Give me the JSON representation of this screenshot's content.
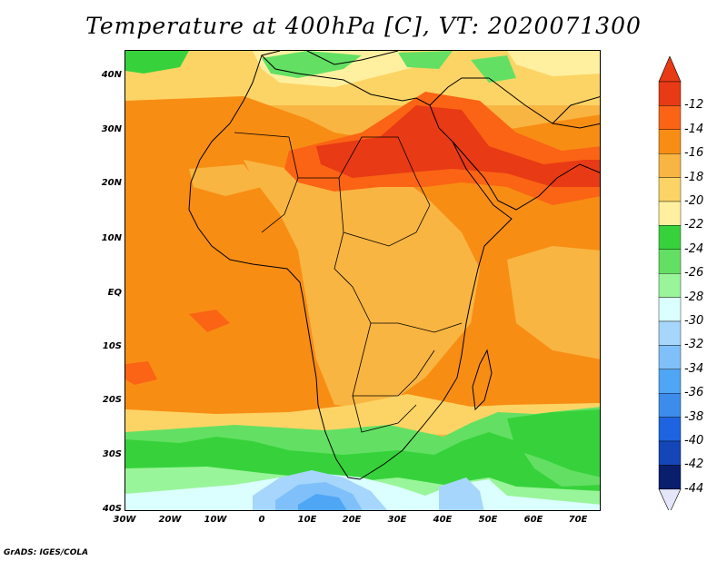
{
  "title": "Temperature at 400hPa [C], VT: 2020071300",
  "credit": "GrADS: IGES/COLA",
  "lat_labels": [
    "40N",
    "30N",
    "20N",
    "10N",
    "EQ",
    "10S",
    "20S",
    "30S",
    "40S"
  ],
  "lon_labels": [
    "30W",
    "20W",
    "10W",
    "0",
    "10E",
    "20E",
    "30E",
    "40E",
    "50E",
    "60E",
    "70E"
  ],
  "colorbar": {
    "labels": [
      "-12",
      "-14",
      "-16",
      "-18",
      "-20",
      "-22",
      "-24",
      "-26",
      "-28",
      "-30",
      "-32",
      "-34",
      "-36",
      "-38",
      "-40",
      "-42",
      "-44"
    ],
    "colors": [
      "#e83a14",
      "#fa6414",
      "#f88d14",
      "#f9b541",
      "#fcd465",
      "#fff0a0",
      "#37d23b",
      "#63e063",
      "#99f599",
      "#dbfefe",
      "#a6d6fb",
      "#80c0fa",
      "#4ea6f5",
      "#3c8cec",
      "#1e64e1",
      "#1546b8",
      "#0a1e6e"
    ],
    "top_arrow": "#e83a14",
    "bottom_arrow": "#e6e6fa"
  }
}
